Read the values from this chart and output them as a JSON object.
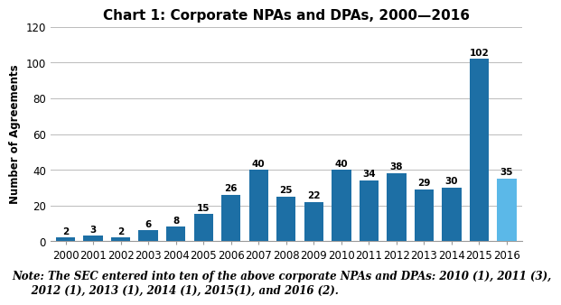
{
  "title": "Chart 1: Corporate NPAs and DPAs, 2000—2016",
  "years": [
    2000,
    2001,
    2002,
    2003,
    2004,
    2005,
    2006,
    2007,
    2008,
    2009,
    2010,
    2011,
    2012,
    2013,
    2014,
    2015,
    2016
  ],
  "values": [
    2,
    3,
    2,
    6,
    8,
    15,
    26,
    40,
    25,
    22,
    40,
    34,
    38,
    29,
    30,
    102,
    35
  ],
  "bar_colors": [
    "#1D6FA5",
    "#1D6FA5",
    "#1D6FA5",
    "#1D6FA5",
    "#1D6FA5",
    "#1D6FA5",
    "#1D6FA5",
    "#1D6FA5",
    "#1D6FA5",
    "#1D6FA5",
    "#1D6FA5",
    "#1D6FA5",
    "#1D6FA5",
    "#1D6FA5",
    "#1D6FA5",
    "#1D6FA5",
    "#5BB8E8"
  ],
  "ylabel": "Number of Agreements",
  "ylim": [
    0,
    120
  ],
  "yticks": [
    0,
    20,
    40,
    60,
    80,
    100,
    120
  ],
  "note": "Note: The SEC entered into ten of the above corporate NPAs and DPAs: 2010 (1), 2011 (3),\n     2012 (1), 2013 (1), 2014 (1), 2015(1), and 2016 (2).",
  "background_color": "#ffffff",
  "grid_color": "#bbbbbb",
  "title_fontsize": 11,
  "label_fontsize": 8.5,
  "note_fontsize": 8.5,
  "bar_label_fontsize": 7.5
}
